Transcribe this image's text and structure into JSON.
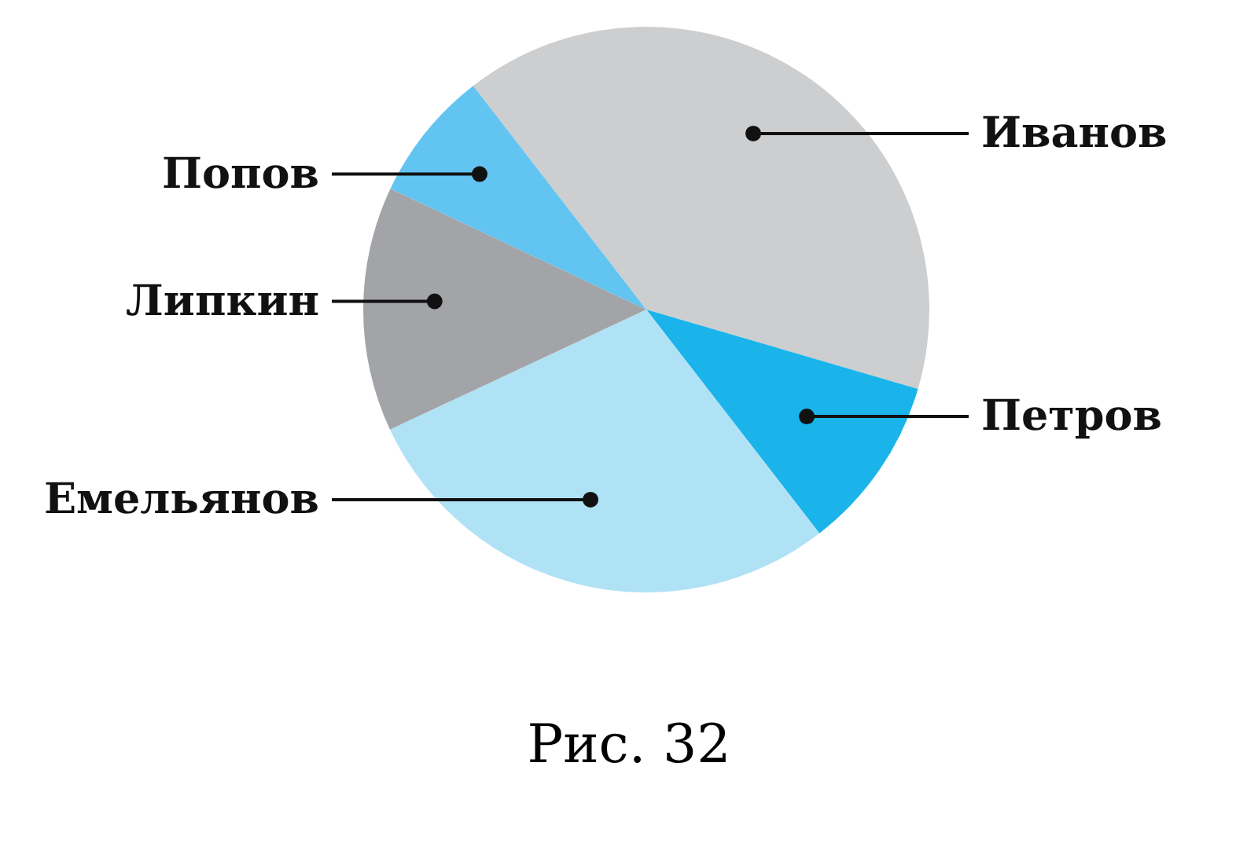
{
  "chart_data": {
    "type": "pie",
    "categories": [
      "Иванов",
      "Петров",
      "Емельянов",
      "Липкин",
      "Попов"
    ],
    "values": [
      40,
      10,
      28.5,
      14,
      7.5
    ],
    "colors": [
      "#cdced0",
      "#1ab4ea",
      "#b0e2f6",
      "#a3a4a7",
      "#62c4f0"
    ],
    "annotations": [
      "Рис. 32"
    ]
  }
}
